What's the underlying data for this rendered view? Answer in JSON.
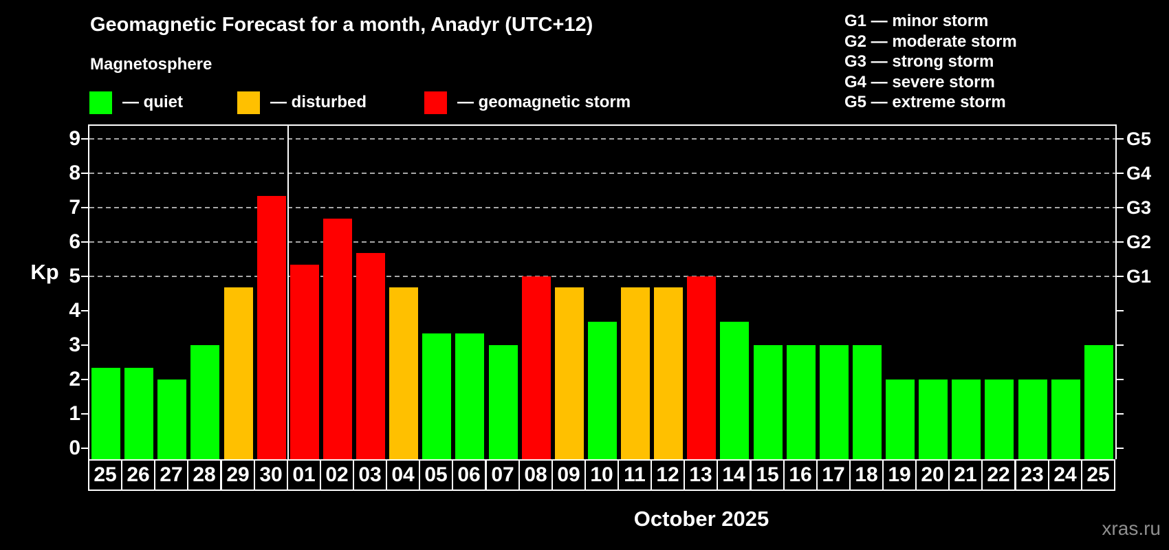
{
  "title": "Geomagnetic Forecast for a month, Anadyr (UTC+12)",
  "subtitle": "Magnetosphere",
  "kp_axis_label": "Kp",
  "month_label": "October 2025",
  "watermark": "xras.ru",
  "legend": [
    {
      "status": "quiet",
      "label": "— quiet"
    },
    {
      "status": "disturbed",
      "label": "— disturbed"
    },
    {
      "status": "storm",
      "label": "— geomagnetic storm"
    }
  ],
  "storm_scale": [
    "G1 — minor storm",
    "G2 — moderate storm",
    "G3 — strong storm",
    "G4 — severe storm",
    "G5 — extreme storm"
  ],
  "status_colors": {
    "quiet": "#00ff00",
    "disturbed": "#ffc000",
    "storm": "#ff0000"
  },
  "grid_color": "#a8a8a8",
  "background_color": "#000000",
  "chart_data": {
    "type": "bar",
    "title": "Geomagnetic Forecast for a month, Anadyr (UTC+12)",
    "xlabel": "October 2025",
    "ylabel": "Kp",
    "ylim": [
      0,
      9
    ],
    "y_ticks": [
      0,
      1,
      2,
      3,
      4,
      5,
      6,
      7,
      8,
      9
    ],
    "grid": "dashed horizontal at Kp 5-9 only",
    "gridlines_at": [
      5,
      6,
      7,
      8,
      9
    ],
    "right_axis_labels": [
      {
        "text": "G1",
        "kp": 5
      },
      {
        "text": "G2",
        "kp": 6
      },
      {
        "text": "G3",
        "kp": 7
      },
      {
        "text": "G4",
        "kp": 8
      },
      {
        "text": "G5",
        "kp": 9
      }
    ],
    "month_boundary_after_index": 5,
    "categories": [
      "25",
      "26",
      "27",
      "28",
      "29",
      "30",
      "01",
      "02",
      "03",
      "04",
      "05",
      "06",
      "07",
      "08",
      "09",
      "10",
      "11",
      "12",
      "13",
      "14",
      "15",
      "16",
      "17",
      "18",
      "19",
      "20",
      "21",
      "22",
      "23",
      "24",
      "25"
    ],
    "values": [
      2.33,
      2.33,
      2.0,
      3.0,
      4.67,
      7.33,
      5.33,
      6.67,
      5.67,
      4.67,
      3.33,
      3.33,
      3.0,
      5.0,
      4.67,
      3.67,
      4.67,
      4.67,
      5.0,
      3.67,
      3.0,
      3.0,
      3.0,
      3.0,
      2.0,
      2.0,
      2.0,
      2.0,
      2.0,
      2.0,
      3.0
    ],
    "statuses": [
      "quiet",
      "quiet",
      "quiet",
      "quiet",
      "disturbed",
      "storm",
      "storm",
      "storm",
      "storm",
      "disturbed",
      "quiet",
      "quiet",
      "quiet",
      "storm",
      "disturbed",
      "quiet",
      "disturbed",
      "disturbed",
      "storm",
      "quiet",
      "quiet",
      "quiet",
      "quiet",
      "quiet",
      "quiet",
      "quiet",
      "quiet",
      "quiet",
      "quiet",
      "quiet",
      "quiet"
    ]
  }
}
